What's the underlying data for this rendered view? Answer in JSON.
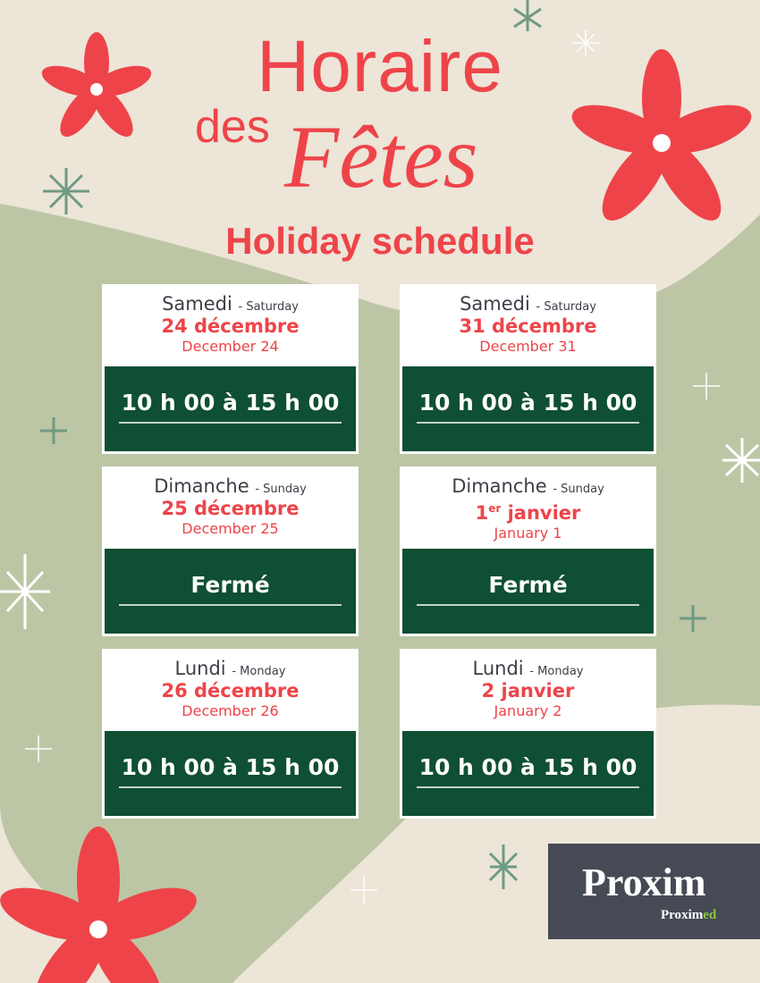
{
  "header": {
    "line1": "Horaire",
    "line2a": "des",
    "line2b": "Fêtes",
    "line3": "Holiday schedule"
  },
  "colors": {
    "accent": "#ee4449",
    "green": "#0f4f33",
    "beige": "#ece5d8",
    "sage": "#bcc6a5"
  },
  "cards": [
    {
      "day_fr": "Samedi",
      "day_en": "- Saturday",
      "date_fr": "24 décembre",
      "date_en": "December 24",
      "hours": "10 h 00 à 15 h 00"
    },
    {
      "day_fr": "Samedi",
      "day_en": "- Saturday",
      "date_fr": "31 décembre",
      "date_en": "December 31",
      "hours": "10 h 00 à 15 h 00"
    },
    {
      "day_fr": "Dimanche",
      "day_en": "- Sunday",
      "date_fr": "25 décembre",
      "date_en": "December 25",
      "hours": "Fermé"
    },
    {
      "day_fr": "Dimanche",
      "day_en": "- Sunday",
      "date_fr_num": "1",
      "date_fr_sup": "er",
      "date_fr_rest": " janvier",
      "date_en": "January 1",
      "hours": "Fermé"
    },
    {
      "day_fr": "Lundi",
      "day_en": "- Monday",
      "date_fr": "26 décembre",
      "date_en": "December 26",
      "hours": "10 h 00 à 15 h 00"
    },
    {
      "day_fr": "Lundi",
      "day_en": "- Monday",
      "date_fr": "2 janvier",
      "date_en": "January 2",
      "hours": "10 h 00 à 15 h 00"
    }
  ],
  "logo": {
    "brand": "Proxim",
    "sub_a": "Pro",
    "sub_b": "xim",
    "sub_c": "ed"
  }
}
